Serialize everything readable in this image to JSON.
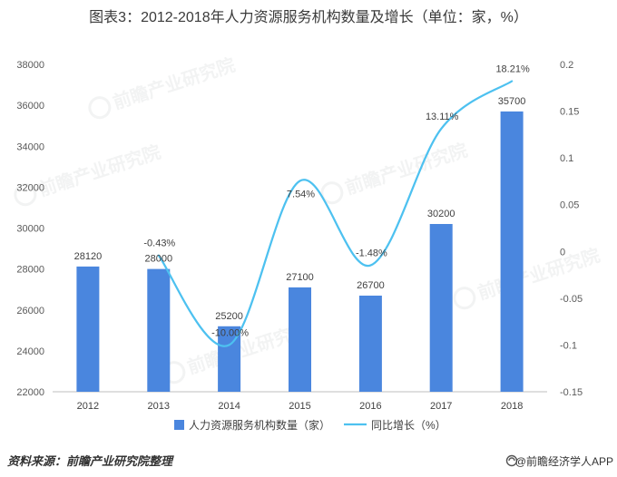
{
  "title": "图表3：2012-2018年人力资源服务机构数量及增长（单位：家，%）",
  "chart_data": {
    "type": "bar",
    "categories": [
      "2012",
      "2013",
      "2014",
      "2015",
      "2016",
      "2017",
      "2018"
    ],
    "series": [
      {
        "name": "人力资源服务机构数量（家）",
        "type": "bar",
        "axis": "left",
        "color": "#4A86DE",
        "values": [
          28120,
          28000,
          25200,
          27100,
          26700,
          30200,
          35700
        ]
      },
      {
        "name": "同比增长（%）",
        "type": "line",
        "axis": "right",
        "smooth": true,
        "color": "#4DC1F0",
        "values": [
          null,
          -0.0043,
          -0.1,
          0.0754,
          -0.0148,
          0.1311,
          0.1821
        ],
        "labels": [
          null,
          "-0.43%",
          "-10.00%",
          "7.54%",
          "-1.48%",
          "13.11%",
          "18.21%"
        ]
      }
    ],
    "y_left": {
      "min": 22000,
      "max": 38000,
      "ticks": [
        "22000",
        "24000",
        "26000",
        "28000",
        "30000",
        "32000",
        "34000",
        "36000",
        "38000"
      ]
    },
    "y_right": {
      "min": -0.15,
      "max": 0.2,
      "ticks": [
        "-0.15",
        "-0.1",
        "-0.05",
        "0",
        "0.05",
        "0.1",
        "0.15",
        "0.2"
      ]
    },
    "grid": false,
    "legend_position": "bottom",
    "axis_color": "#BFBFBF"
  },
  "source": "资料来源：前瞻产业研究院整理",
  "brand": "@前瞻经济学人APP",
  "watermark": "前瞻产业研究院"
}
